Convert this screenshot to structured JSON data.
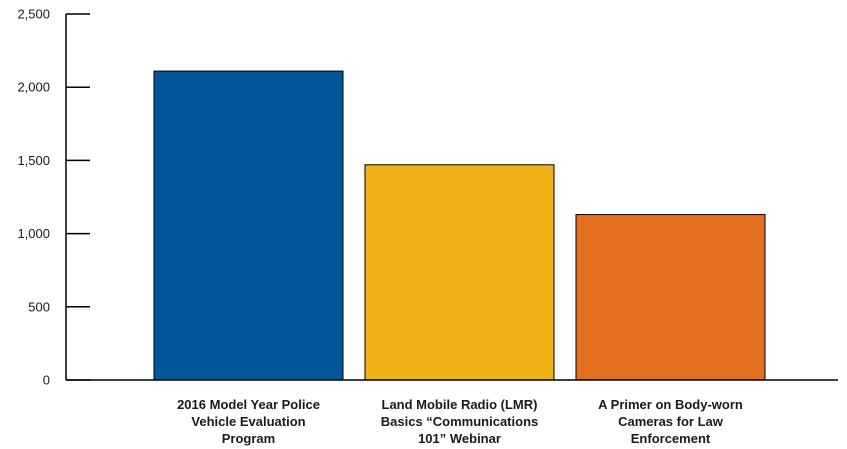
{
  "chart_data": {
    "type": "bar",
    "categories": [
      [
        "2016 Model Year Police",
        "Vehicle Evaluation",
        "Program"
      ],
      [
        "Land Mobile Radio (LMR)",
        "Basics “Communications",
        "101” Webinar"
      ],
      [
        "A Primer on Body-worn",
        "Cameras for Law",
        "Enforcement"
      ]
    ],
    "values": [
      2110,
      1470,
      1130
    ],
    "colors": [
      "#005696",
      "#f0b116",
      "#e46f1f"
    ],
    "ylim": [
      0,
      2500
    ],
    "yticks": [
      {
        "value": 0,
        "label": "0"
      },
      {
        "value": 500,
        "label": "500"
      },
      {
        "value": 1000,
        "label": "1,000"
      },
      {
        "value": 1500,
        "label": "1,500"
      },
      {
        "value": 2000,
        "label": "2,000"
      },
      {
        "value": 2500,
        "label": "2,500"
      }
    ],
    "grid": false,
    "title": "",
    "xlabel": "",
    "ylabel": ""
  }
}
